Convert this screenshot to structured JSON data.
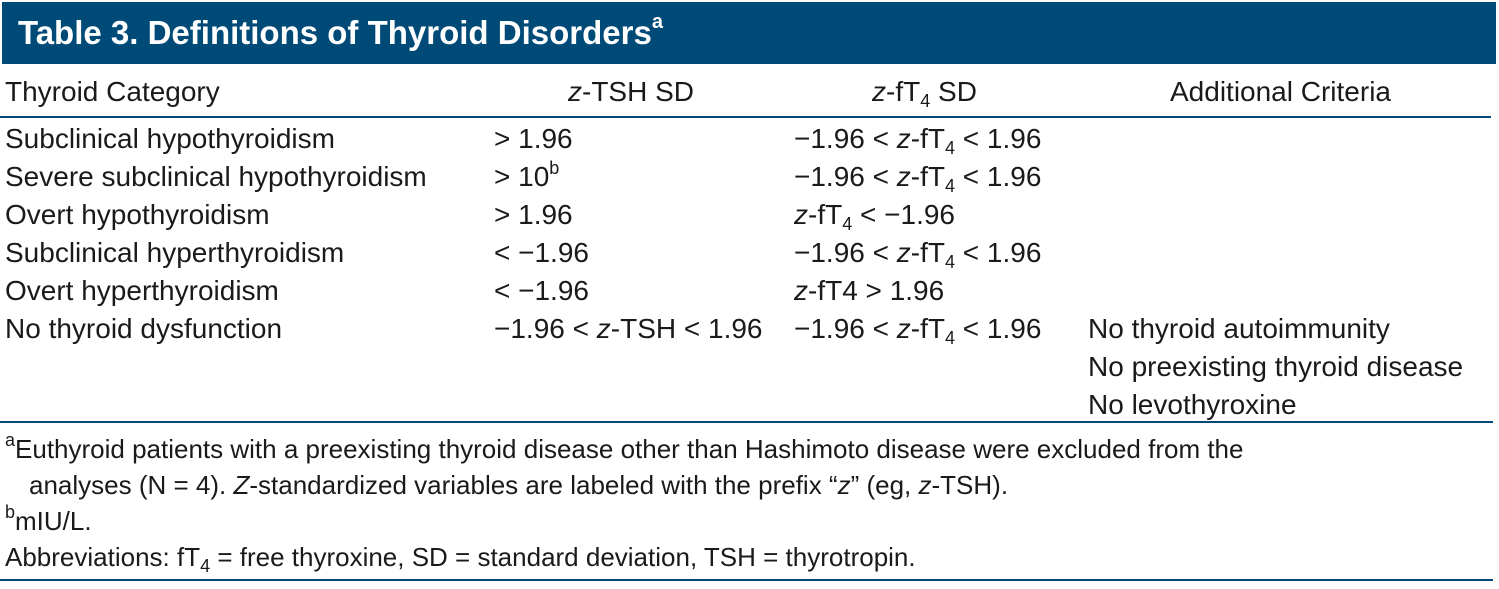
{
  "title": {
    "text": "Table 3. Definitions of Thyroid Disorders",
    "footnote_mark": "a"
  },
  "header": {
    "col1": "Thyroid Category",
    "col2_italic": "z",
    "col2_rest": "-TSH SD",
    "col3_italic": "z",
    "col3_pre": "-fT",
    "col3_sub": "4",
    "col3_post": " SD",
    "col4": "Additional Criteria"
  },
  "rows": [
    {
      "category": "Subclinical hypothyroidism",
      "tsh": "> 1.96",
      "ft4_pre": "−1.96 < ",
      "ft4_z": "z",
      "ft4_mid": "-fT",
      "ft4_sub": "4",
      "ft4_post": " < 1.96"
    },
    {
      "category": "Severe subclinical hypothyroidism",
      "tsh": "> 10",
      "tsh_sup": "b",
      "ft4_pre": "−1.96 < ",
      "ft4_z": "z",
      "ft4_mid": "-fT",
      "ft4_sub": "4",
      "ft4_post": " < 1.96"
    },
    {
      "category": "Overt hypothyroidism",
      "tsh": "> 1.96",
      "ft4_z": "z",
      "ft4_mid": "-fT",
      "ft4_sub": "4",
      "ft4_post": " < −1.96"
    },
    {
      "category": "Subclinical hyperthyroidism",
      "tsh": "< −1.96",
      "ft4_pre": "−1.96 < ",
      "ft4_z": "z",
      "ft4_mid": "-fT",
      "ft4_sub": "4",
      "ft4_post": " < 1.96"
    },
    {
      "category": "Overt hyperthyroidism",
      "tsh": "< −1.96",
      "ft4_z": "z",
      "ft4_mid": "-fT4 > 1.96"
    },
    {
      "category": "No thyroid dysfunction",
      "tsh_pre": "−1.96 < ",
      "tsh_z": "z",
      "tsh_post": "-TSH < 1.96",
      "ft4_pre": "−1.96 < ",
      "ft4_z": "z",
      "ft4_mid": "-fT",
      "ft4_sub": "4",
      "ft4_post": " < 1.96",
      "criteria": [
        "No thyroid autoimmunity",
        "No preexisting thyroid disease",
        "No levothyroxine"
      ]
    }
  ],
  "footnotes": {
    "a_mark": "a",
    "a_line1": "Euthyroid patients with a preexisting thyroid disease other than Hashimoto disease were excluded from the",
    "a_line2_pre": "analyses (N = 4). ",
    "a_line2_z": "Z",
    "a_line2_mid": "-standardized variables are labeled with the prefix “",
    "a_line2_z2": "z",
    "a_line2_mid2": "” (eg, ",
    "a_line2_z3": "z",
    "a_line2_post": "-TSH).",
    "b_mark": "b",
    "b_text": "mIU/L.",
    "abbr_pre": "Abbreviations: fT",
    "abbr_sub": "4",
    "abbr_post": " = free thyroxine, SD = standard deviation, TSH = thyrotropin."
  }
}
